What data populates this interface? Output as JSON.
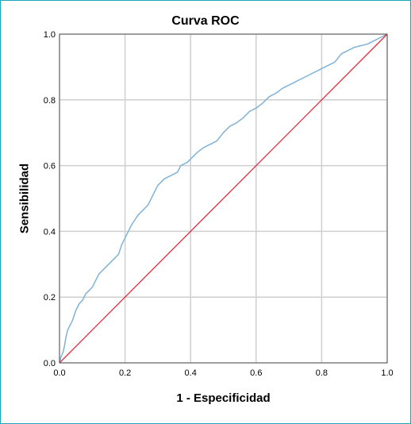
{
  "chart_data": {
    "type": "line",
    "title": "Curva ROC",
    "xlabel": "1 - Especificidad",
    "ylabel": "Sensibilidad",
    "xlim": [
      0.0,
      1.0
    ],
    "ylim": [
      0.0,
      1.0
    ],
    "xticks": [
      "0.0",
      "0.2",
      "0.4",
      "0.6",
      "0.8",
      "1.0"
    ],
    "yticks": [
      "0.0",
      "0.2",
      "0.4",
      "0.6",
      "0.8",
      "1.0"
    ],
    "grid": true,
    "colors": {
      "roc": "#7fb2d8",
      "reference": "#e0303c",
      "grid": "#cfcfcf",
      "frame": "#1aa6b7"
    },
    "series": [
      {
        "x": [
          0,
          0.005,
          0.01,
          0.015,
          0.02,
          0.025,
          0.03,
          0.04,
          0.05,
          0.06,
          0.07,
          0.08,
          0.09,
          0.1,
          0.12,
          0.14,
          0.16,
          0.18,
          0.19,
          0.2,
          0.21,
          0.22,
          0.24,
          0.25,
          0.27,
          0.29,
          0.3,
          0.32,
          0.34,
          0.36,
          0.37,
          0.38,
          0.39,
          0.4,
          0.42,
          0.44,
          0.46,
          0.48,
          0.5,
          0.52,
          0.54,
          0.56,
          0.58,
          0.6,
          0.62,
          0.64,
          0.66,
          0.68,
          0.7,
          0.72,
          0.74,
          0.76,
          0.78,
          0.8,
          0.82,
          0.84,
          0.86,
          0.88,
          0.9,
          0.92,
          0.94,
          0.96,
          0.98,
          1.0
        ],
        "y": [
          0,
          0.02,
          0.03,
          0.05,
          0.08,
          0.1,
          0.11,
          0.13,
          0.16,
          0.18,
          0.19,
          0.21,
          0.22,
          0.23,
          0.27,
          0.29,
          0.31,
          0.33,
          0.36,
          0.38,
          0.4,
          0.42,
          0.45,
          0.46,
          0.48,
          0.52,
          0.54,
          0.56,
          0.57,
          0.58,
          0.6,
          0.605,
          0.61,
          0.62,
          0.64,
          0.655,
          0.665,
          0.675,
          0.7,
          0.72,
          0.73,
          0.745,
          0.765,
          0.775,
          0.79,
          0.81,
          0.82,
          0.835,
          0.845,
          0.855,
          0.865,
          0.875,
          0.885,
          0.895,
          0.905,
          0.915,
          0.94,
          0.95,
          0.96,
          0.965,
          0.97,
          0.98,
          0.99,
          1.0
        ]
      },
      {
        "x": [
          0,
          1
        ],
        "y": [
          0,
          1
        ]
      }
    ]
  }
}
